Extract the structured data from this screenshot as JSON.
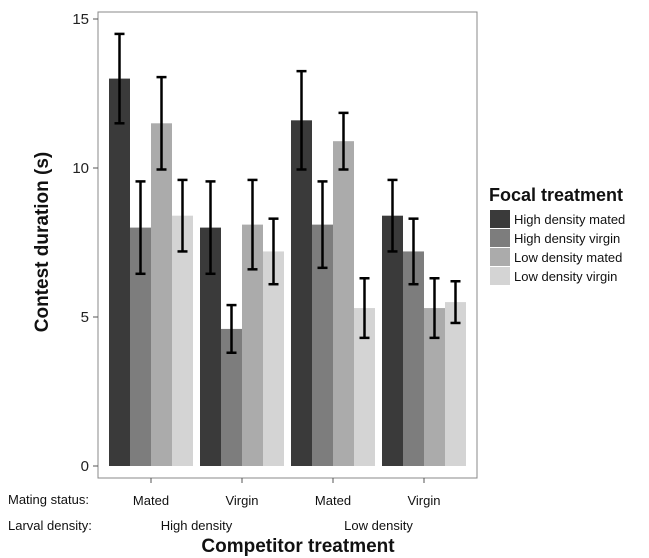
{
  "chart_data": {
    "type": "bar",
    "ylabel": "Contest duration (s)",
    "xlabel": "Competitor treatment",
    "ylim": [
      0,
      15
    ],
    "yticks": [
      0,
      5,
      10,
      15
    ],
    "grid": false,
    "legend": {
      "title": "Focal treatment",
      "placement": "right"
    },
    "row_labels": {
      "mating": "Mating status:",
      "density": "Larval density:"
    },
    "categories": [
      "Mated",
      "Virgin",
      "Mated",
      "Virgin"
    ],
    "density_groups": [
      {
        "label": "High density",
        "span": [
          0,
          1
        ]
      },
      {
        "label": "Low density",
        "span": [
          2,
          3
        ]
      }
    ],
    "series": [
      {
        "name": "High density mated",
        "color": "#3a3a3a",
        "values": [
          13.0,
          8.0,
          11.6,
          8.4
        ],
        "errors": [
          1.5,
          1.55,
          1.65,
          1.2
        ]
      },
      {
        "name": "High density virgin",
        "color": "#7d7d7d",
        "values": [
          8.0,
          4.6,
          8.1,
          7.2
        ],
        "errors": [
          1.55,
          0.8,
          1.45,
          1.1
        ]
      },
      {
        "name": "Low density mated",
        "color": "#ababab",
        "values": [
          11.5,
          8.1,
          10.9,
          5.3
        ],
        "errors": [
          1.55,
          1.5,
          0.95,
          1.0
        ]
      },
      {
        "name": "Low density virgin",
        "color": "#d4d4d4",
        "values": [
          8.4,
          7.2,
          5.3,
          5.5
        ],
        "errors": [
          1.2,
          1.1,
          1.0,
          0.7
        ]
      }
    ]
  }
}
